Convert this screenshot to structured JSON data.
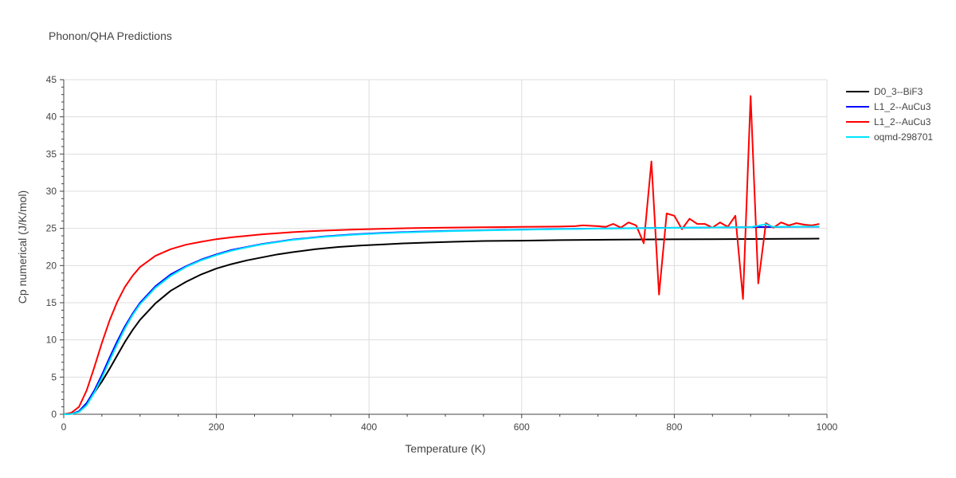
{
  "chart_data": {
    "type": "line",
    "title": "Phonon/QHA Predictions",
    "xlabel": "Temperature (K)",
    "ylabel": "Cp numerical (J/K/mol)",
    "xlim": [
      0,
      1000
    ],
    "ylim": [
      0,
      45
    ],
    "x_ticks": [
      0,
      200,
      400,
      600,
      800,
      1000
    ],
    "y_ticks": [
      0,
      5,
      10,
      15,
      20,
      25,
      30,
      35,
      40,
      45
    ],
    "grid": true,
    "legend_position": "top-right",
    "series": [
      {
        "name": "D0_3--BiF3",
        "color": "#000000",
        "points": [
          [
            0,
            0
          ],
          [
            10,
            0.05
          ],
          [
            20,
            0.4
          ],
          [
            30,
            1.5
          ],
          [
            40,
            2.9
          ],
          [
            50,
            4.4
          ],
          [
            60,
            6.1
          ],
          [
            70,
            7.9
          ],
          [
            80,
            9.7
          ],
          [
            90,
            11.3
          ],
          [
            100,
            12.7
          ],
          [
            120,
            14.9
          ],
          [
            140,
            16.6
          ],
          [
            160,
            17.8
          ],
          [
            180,
            18.8
          ],
          [
            200,
            19.6
          ],
          [
            220,
            20.2
          ],
          [
            240,
            20.7
          ],
          [
            260,
            21.1
          ],
          [
            280,
            21.5
          ],
          [
            300,
            21.8
          ],
          [
            330,
            22.2
          ],
          [
            360,
            22.5
          ],
          [
            390,
            22.7
          ],
          [
            420,
            22.85
          ],
          [
            450,
            23.0
          ],
          [
            480,
            23.1
          ],
          [
            510,
            23.2
          ],
          [
            550,
            23.3
          ],
          [
            600,
            23.35
          ],
          [
            650,
            23.42
          ],
          [
            700,
            23.47
          ],
          [
            750,
            23.5
          ],
          [
            800,
            23.53
          ],
          [
            850,
            23.55
          ],
          [
            900,
            23.57
          ],
          [
            950,
            23.6
          ],
          [
            990,
            23.62
          ]
        ]
      },
      {
        "name": "L1_2--AuCu3",
        "color": "#0000ff",
        "points": [
          [
            0,
            0
          ],
          [
            10,
            0.05
          ],
          [
            20,
            0.4
          ],
          [
            30,
            1.5
          ],
          [
            40,
            3.2
          ],
          [
            50,
            5.3
          ],
          [
            60,
            7.6
          ],
          [
            70,
            9.8
          ],
          [
            80,
            11.8
          ],
          [
            90,
            13.5
          ],
          [
            100,
            15.0
          ],
          [
            120,
            17.2
          ],
          [
            140,
            18.8
          ],
          [
            160,
            19.9
          ],
          [
            180,
            20.8
          ],
          [
            200,
            21.5
          ],
          [
            220,
            22.1
          ],
          [
            240,
            22.5
          ],
          [
            260,
            22.9
          ],
          [
            280,
            23.2
          ],
          [
            300,
            23.5
          ],
          [
            340,
            23.9
          ],
          [
            380,
            24.2
          ],
          [
            420,
            24.4
          ],
          [
            460,
            24.55
          ],
          [
            500,
            24.65
          ],
          [
            550,
            24.75
          ],
          [
            600,
            24.85
          ],
          [
            650,
            24.92
          ],
          [
            700,
            24.98
          ],
          [
            750,
            25.03
          ],
          [
            800,
            25.08
          ],
          [
            850,
            25.12
          ],
          [
            900,
            25.16
          ],
          [
            950,
            25.2
          ],
          [
            990,
            25.22
          ]
        ]
      },
      {
        "name": "L1_2--AuCu3",
        "color": "#ff0000",
        "points": [
          [
            0,
            0
          ],
          [
            10,
            0.2
          ],
          [
            20,
            1.0
          ],
          [
            30,
            3.2
          ],
          [
            40,
            6.3
          ],
          [
            50,
            9.6
          ],
          [
            60,
            12.6
          ],
          [
            70,
            15.1
          ],
          [
            80,
            17.1
          ],
          [
            90,
            18.6
          ],
          [
            100,
            19.8
          ],
          [
            120,
            21.3
          ],
          [
            140,
            22.2
          ],
          [
            160,
            22.8
          ],
          [
            180,
            23.2
          ],
          [
            200,
            23.55
          ],
          [
            220,
            23.8
          ],
          [
            240,
            24.0
          ],
          [
            260,
            24.2
          ],
          [
            280,
            24.35
          ],
          [
            300,
            24.5
          ],
          [
            340,
            24.7
          ],
          [
            380,
            24.85
          ],
          [
            420,
            24.95
          ],
          [
            460,
            25.05
          ],
          [
            500,
            25.1
          ],
          [
            550,
            25.15
          ],
          [
            600,
            25.2
          ],
          [
            650,
            25.25
          ],
          [
            670,
            25.3
          ],
          [
            680,
            25.4
          ],
          [
            700,
            25.3
          ],
          [
            710,
            25.2
          ],
          [
            720,
            25.6
          ],
          [
            730,
            25.1
          ],
          [
            740,
            25.8
          ],
          [
            750,
            25.4
          ],
          [
            760,
            23.0
          ],
          [
            770,
            34.0
          ],
          [
            780,
            16.1
          ],
          [
            790,
            27.0
          ],
          [
            800,
            26.7
          ],
          [
            810,
            24.9
          ],
          [
            820,
            26.3
          ],
          [
            830,
            25.6
          ],
          [
            840,
            25.6
          ],
          [
            850,
            25.1
          ],
          [
            860,
            25.8
          ],
          [
            870,
            25.2
          ],
          [
            880,
            26.7
          ],
          [
            890,
            15.5
          ],
          [
            900,
            42.8
          ],
          [
            910,
            17.6
          ],
          [
            920,
            25.7
          ],
          [
            930,
            25.1
          ],
          [
            940,
            25.8
          ],
          [
            950,
            25.4
          ],
          [
            960,
            25.7
          ],
          [
            970,
            25.5
          ],
          [
            980,
            25.4
          ],
          [
            990,
            25.6
          ]
        ]
      },
      {
        "name": "oqmd-298701",
        "color": "#00e5ff",
        "points": [
          [
            0,
            0
          ],
          [
            10,
            0.04
          ],
          [
            20,
            0.3
          ],
          [
            30,
            1.2
          ],
          [
            40,
            2.9
          ],
          [
            50,
            4.9
          ],
          [
            60,
            7.2
          ],
          [
            70,
            9.4
          ],
          [
            80,
            11.5
          ],
          [
            90,
            13.3
          ],
          [
            100,
            14.8
          ],
          [
            120,
            17.0
          ],
          [
            140,
            18.6
          ],
          [
            160,
            19.8
          ],
          [
            180,
            20.7
          ],
          [
            200,
            21.4
          ],
          [
            220,
            22.0
          ],
          [
            240,
            22.45
          ],
          [
            260,
            22.85
          ],
          [
            280,
            23.15
          ],
          [
            300,
            23.45
          ],
          [
            340,
            23.85
          ],
          [
            380,
            24.15
          ],
          [
            420,
            24.35
          ],
          [
            460,
            24.5
          ],
          [
            500,
            24.62
          ],
          [
            550,
            24.72
          ],
          [
            600,
            24.82
          ],
          [
            650,
            24.9
          ],
          [
            700,
            24.97
          ],
          [
            750,
            25.02
          ],
          [
            800,
            25.07
          ],
          [
            850,
            25.12
          ],
          [
            900,
            25.17
          ],
          [
            920,
            25.55
          ],
          [
            930,
            25.2
          ],
          [
            950,
            25.22
          ],
          [
            990,
            25.25
          ]
        ]
      }
    ]
  }
}
